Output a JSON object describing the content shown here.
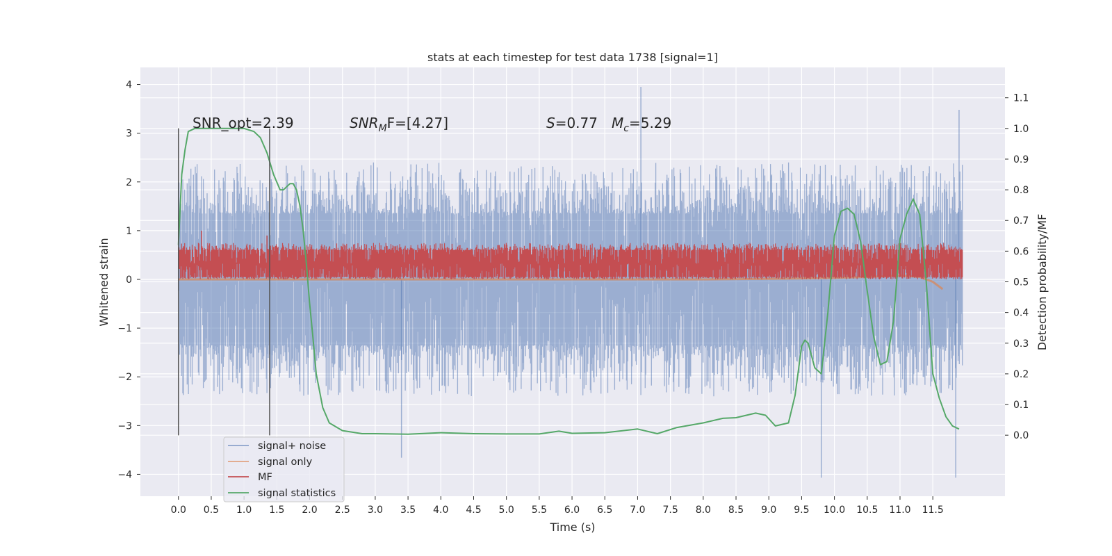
{
  "chart_data": {
    "type": "line",
    "title": "stats at each timestep for test data 1738 [signal=1]",
    "xlabel": "Time (s)",
    "ylabel": "Whitened strain",
    "ylabel_right": "Detection probability/MF",
    "xlim": [
      -0.58,
      12.6
    ],
    "ylim": [
      -4.45,
      4.35
    ],
    "ylim_right": [
      -0.199,
      1.199
    ],
    "x_ticks": [
      "0.0",
      "0.5",
      "1.0",
      "1.5",
      "2.0",
      "2.5",
      "3.0",
      "3.5",
      "4.0",
      "4.5",
      "5.0",
      "5.5",
      "6.0",
      "6.5",
      "7.0",
      "7.5",
      "8.0",
      "8.5",
      "9.0",
      "9.5",
      "10.0",
      "10.5",
      "11.0",
      "11.5"
    ],
    "y_ticks": [
      "4",
      "3",
      "2",
      "1",
      "0",
      "−1",
      "−2",
      "−3",
      "−4"
    ],
    "y_ticks_right": [
      "1.1",
      "1.0",
      "0.9",
      "0.8",
      "0.7",
      "0.6",
      "0.5",
      "0.4",
      "0.3",
      "0.2",
      "0.1",
      "0.0"
    ],
    "grid": true,
    "legend_position": "lower-left",
    "annotations": {
      "snr_opt": "SNR_opt=2.39",
      "snr_mf_sym": "SNR",
      "snr_mf_sub": "M",
      "snr_mf_rest": "F=[4.27]",
      "s_sym": "S",
      "s_rest": "=0.77",
      "mc_sym": "M",
      "mc_sub": "c",
      "mc_rest": "=5.29"
    },
    "vertical_markers": [
      0.0,
      1.39
    ],
    "colors": {
      "background": "#eaeaf2",
      "grid": "#ffffff",
      "signal_noise": "#4c72b0",
      "signal_only": "#dd8452",
      "mf": "#c44e52",
      "signal_statistics": "#55a868",
      "marker": "#555555"
    },
    "series": [
      {
        "name": "signal+ noise",
        "axis": "left",
        "kind": "noise-band",
        "x_range": [
          0.0,
          11.95
        ],
        "core_range": [
          -1.35,
          1.35
        ],
        "typical_peak": [
          -2.4,
          2.4
        ],
        "extremes": [
          [
            7.05,
            3.95
          ],
          [
            11.9,
            3.48
          ],
          [
            3.4,
            -3.66
          ],
          [
            9.8,
            -4.07
          ],
          [
            11.85,
            -4.07
          ]
        ]
      },
      {
        "name": "signal only",
        "axis": "left",
        "x": [
          0.0,
          1.0,
          2.0,
          3.0,
          4.0,
          5.0,
          6.0,
          7.0,
          8.0,
          9.0,
          9.5,
          10.0,
          10.5,
          11.0,
          11.3,
          11.5,
          11.65
        ],
        "y": [
          0.0,
          0.0,
          0.0,
          0.0,
          0.0,
          0.0,
          0.0,
          0.0,
          0.0,
          0.01,
          0.02,
          0.03,
          0.05,
          0.08,
          0.05,
          -0.05,
          -0.2
        ]
      },
      {
        "name": "MF",
        "axis": "left",
        "kind": "noise-band",
        "x_range": [
          0.0,
          11.95
        ],
        "core_range": [
          0.05,
          0.6
        ],
        "typical_peak": [
          0.0,
          0.75
        ],
        "extremes": [
          [
            0.35,
            1.0
          ],
          [
            1.35,
            0.9
          ]
        ]
      },
      {
        "name": "signal statistics",
        "axis": "right",
        "x": [
          0.0,
          0.05,
          0.1,
          0.15,
          0.25,
          0.4,
          0.6,
          0.8,
          1.0,
          1.15,
          1.25,
          1.35,
          1.45,
          1.55,
          1.6,
          1.65,
          1.7,
          1.75,
          1.8,
          1.85,
          1.9,
          1.95,
          2.0,
          2.05,
          2.1,
          2.2,
          2.3,
          2.5,
          2.8,
          3.0,
          3.5,
          4.0,
          4.5,
          5.0,
          5.5,
          5.8,
          6.0,
          6.5,
          7.0,
          7.3,
          7.6,
          8.0,
          8.3,
          8.5,
          8.8,
          8.95,
          9.1,
          9.3,
          9.4,
          9.5,
          9.55,
          9.6,
          9.7,
          9.8,
          9.9,
          10.0,
          10.1,
          10.2,
          10.3,
          10.4,
          10.5,
          10.6,
          10.7,
          10.8,
          10.9,
          11.0,
          11.1,
          11.2,
          11.3,
          11.4,
          11.5,
          11.6,
          11.7,
          11.8,
          11.9
        ],
        "y": [
          0.62,
          0.85,
          0.93,
          0.99,
          1.0,
          1.0,
          1.0,
          1.0,
          1.0,
          0.99,
          0.97,
          0.92,
          0.85,
          0.8,
          0.8,
          0.81,
          0.82,
          0.82,
          0.8,
          0.75,
          0.67,
          0.56,
          0.43,
          0.32,
          0.2,
          0.09,
          0.04,
          0.015,
          0.005,
          0.005,
          0.003,
          0.008,
          0.005,
          0.004,
          0.004,
          0.013,
          0.006,
          0.008,
          0.02,
          0.005,
          0.025,
          0.04,
          0.055,
          0.057,
          0.072,
          0.065,
          0.03,
          0.04,
          0.13,
          0.29,
          0.31,
          0.3,
          0.22,
          0.2,
          0.4,
          0.65,
          0.73,
          0.74,
          0.72,
          0.63,
          0.47,
          0.32,
          0.23,
          0.24,
          0.37,
          0.64,
          0.72,
          0.77,
          0.72,
          0.5,
          0.2,
          0.12,
          0.06,
          0.03,
          0.02
        ]
      }
    ]
  }
}
